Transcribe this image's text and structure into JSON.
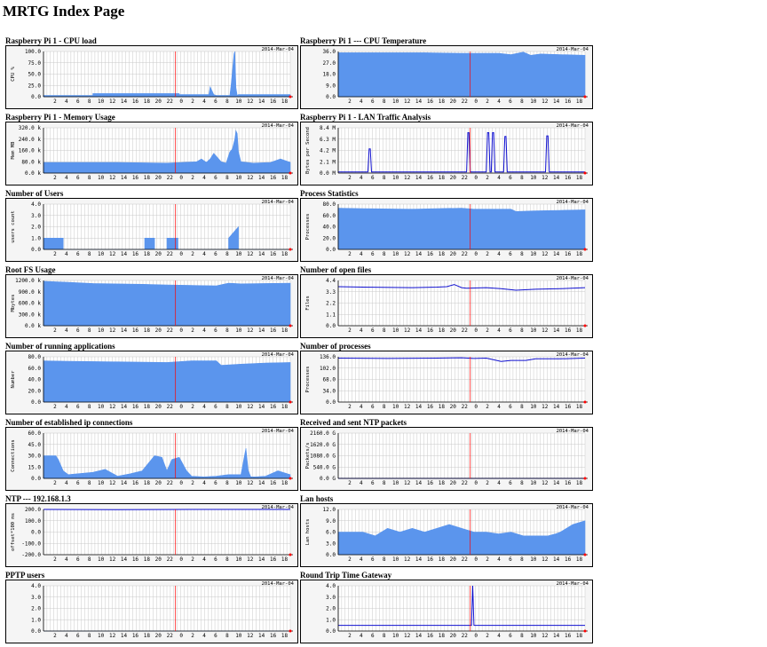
{
  "page": {
    "title": "MRTG Index Page"
  },
  "graph_defaults": {
    "date_stamp": "2014-Mar-04",
    "x_ticks": [
      "2",
      "4",
      "6",
      "8",
      "10",
      "12",
      "14",
      "16",
      "18",
      "20",
      "22",
      "0",
      "2",
      "4",
      "6",
      "8",
      "10",
      "12",
      "14",
      "16",
      "18"
    ],
    "colors": {
      "area": "#5b95ed",
      "line": "#1010d0",
      "grid": "#c8c8c8",
      "now_marker": "#ff0000",
      "plot_bg": "#f5f5f5"
    }
  },
  "graphs": [
    {
      "title": "Raspberry Pi 1 - CPU load",
      "ylabel": "CPU %",
      "yticks": [
        "0.0",
        "25.0",
        "50.0",
        "75.0",
        "100.0"
      ],
      "ymax": 100,
      "style": "area",
      "chart_data": {
        "type": "area",
        "x": [
          0,
          0.2,
          0.2,
          0.55,
          0.55,
          0.67,
          0.675,
          0.69,
          0.7,
          0.755,
          0.76,
          0.772,
          0.775,
          0.78,
          0.785,
          0.79,
          1
        ],
        "y": [
          3,
          3,
          7,
          7,
          5,
          5,
          22,
          5,
          3,
          3,
          25,
          95,
          100,
          20,
          3,
          5,
          5
        ],
        "ylim": [
          0,
          100
        ]
      }
    },
    {
      "title": "Raspberry Pi 1 --- CPU Temperature",
      "ylabel": "",
      "yticks": [
        "0.0",
        "9.0",
        "18.0",
        "27.0",
        "36.0"
      ],
      "ymax": 36,
      "style": "area",
      "chart_data": {
        "type": "area",
        "x": [
          0,
          0.35,
          0.5,
          0.65,
          0.7,
          0.75,
          0.78,
          0.82,
          0.9,
          1
        ],
        "y": [
          35,
          35,
          34.5,
          34.5,
          33.5,
          35.5,
          33,
          34,
          33.5,
          33
        ],
        "ylim": [
          0,
          36
        ]
      }
    },
    {
      "title": "Raspberry Pi 1 - Memory Usage",
      "ylabel": "Mem MB",
      "yticks": [
        "0.0 k",
        "80.0 k",
        "160.0 k",
        "240.0 k",
        "320.0 k"
      ],
      "ymax": 320,
      "style": "area",
      "chart_data": {
        "type": "area",
        "x": [
          0,
          0.3,
          0.5,
          0.62,
          0.64,
          0.66,
          0.675,
          0.69,
          0.72,
          0.74,
          0.755,
          0.765,
          0.775,
          0.78,
          0.785,
          0.79,
          0.8,
          0.85,
          0.92,
          0.96,
          1
        ],
        "y": [
          75,
          75,
          70,
          80,
          100,
          75,
          100,
          140,
          80,
          70,
          150,
          170,
          240,
          300,
          280,
          150,
          80,
          70,
          75,
          100,
          75
        ],
        "ylim": [
          0,
          320
        ]
      }
    },
    {
      "title": "Raspberry Pi 1 - LAN Traffic Analysis",
      "ylabel": "Bytes per Second",
      "yticks": [
        "0.0 M",
        "2.1 M",
        "4.2 M",
        "6.3 M",
        "8.4 M"
      ],
      "ymax": 8.4,
      "style": "line",
      "chart_data": {
        "type": "line",
        "x": [
          0,
          0.12,
          0.125,
          0.13,
          0.135,
          0.52,
          0.525,
          0.53,
          0.535,
          0.6,
          0.605,
          0.61,
          0.615,
          0.62,
          0.625,
          0.63,
          0.635,
          0.67,
          0.675,
          0.68,
          0.685,
          0.84,
          0.845,
          0.85,
          0.855,
          1
        ],
        "y": [
          0.2,
          0.2,
          4.5,
          4.5,
          0.2,
          0.2,
          7.5,
          7.5,
          0.2,
          0.2,
          7.5,
          7.5,
          0.2,
          0.2,
          7.5,
          7.5,
          0.2,
          0.2,
          6.8,
          6.8,
          0.2,
          0.2,
          6.9,
          6.9,
          0.2,
          0.2
        ],
        "ylim": [
          0,
          8.4
        ]
      }
    },
    {
      "title": "Number of Users",
      "ylabel": "users count",
      "yticks": [
        "0.0",
        "1.0",
        "2.0",
        "3.0",
        "4.0"
      ],
      "ymax": 4,
      "style": "area",
      "chart_data": {
        "type": "area",
        "x": [
          0,
          0.08,
          0.08,
          0.41,
          0.41,
          0.45,
          0.45,
          0.5,
          0.5,
          0.545,
          0.545,
          0.75,
          0.75,
          0.79,
          0.79,
          1
        ],
        "y": [
          1,
          1,
          0,
          0,
          1,
          1,
          0,
          0,
          1,
          1,
          0,
          0,
          1,
          2,
          0,
          0
        ],
        "ylim": [
          0,
          4
        ]
      }
    },
    {
      "title": "Process Statistics",
      "ylabel": "Processes",
      "yticks": [
        "0.0",
        "20.0",
        "40.0",
        "60.0",
        "80.0"
      ],
      "ymax": 80,
      "style": "area",
      "chart_data": {
        "type": "area",
        "x": [
          0,
          0.1,
          0.3,
          0.5,
          0.55,
          0.7,
          0.72,
          0.8,
          0.9,
          1
        ],
        "y": [
          73,
          72,
          71,
          73,
          71,
          71,
          67,
          68,
          69,
          70
        ],
        "ylim": [
          0,
          80
        ]
      }
    },
    {
      "title": "Root FS Usage",
      "ylabel": "Mbytes",
      "yticks": [
        "0.0 k",
        "300.0 k",
        "600.0 k",
        "900.0 k",
        "1200.0 k"
      ],
      "ymax": 1200,
      "style": "area",
      "chart_data": {
        "type": "area",
        "x": [
          0,
          0.1,
          0.2,
          0.4,
          0.5,
          0.6,
          0.7,
          0.75,
          0.8,
          1
        ],
        "y": [
          1180,
          1150,
          1120,
          1100,
          1080,
          1070,
          1060,
          1130,
          1110,
          1130
        ],
        "ylim": [
          0,
          1200
        ]
      }
    },
    {
      "title": "Number of open files",
      "ylabel": "Files",
      "yticks": [
        "0.0",
        "1.1",
        "2.2",
        "3.3",
        "4.4"
      ],
      "ymax": 4.4,
      "style": "line",
      "chart_data": {
        "type": "line",
        "x": [
          0,
          0.1,
          0.3,
          0.4,
          0.44,
          0.47,
          0.5,
          0.52,
          0.6,
          0.66,
          0.72,
          0.8,
          0.9,
          1
        ],
        "y": [
          3.8,
          3.75,
          3.7,
          3.75,
          3.8,
          4.0,
          3.7,
          3.65,
          3.7,
          3.6,
          3.45,
          3.55,
          3.6,
          3.7
        ],
        "ylim": [
          0,
          4.4
        ]
      }
    },
    {
      "title": "Number of running applications",
      "ylabel": "Number",
      "yticks": [
        "0.0",
        "20.0",
        "40.0",
        "60.0",
        "80.0"
      ],
      "ymax": 80,
      "style": "area",
      "chart_data": {
        "type": "area",
        "x": [
          0,
          0.1,
          0.3,
          0.5,
          0.54,
          0.6,
          0.7,
          0.72,
          0.8,
          0.9,
          1
        ],
        "y": [
          73,
          72,
          71,
          70,
          71,
          73,
          73,
          65,
          67,
          69,
          70
        ],
        "ylim": [
          0,
          80
        ]
      }
    },
    {
      "title": "Number of processes",
      "ylabel": "Processes",
      "yticks": [
        "0.0",
        "34.0",
        "68.0",
        "102.0",
        "136.0"
      ],
      "ymax": 136,
      "style": "line",
      "chart_data": {
        "type": "line",
        "x": [
          0,
          0.2,
          0.4,
          0.5,
          0.55,
          0.6,
          0.66,
          0.7,
          0.76,
          0.8,
          0.9,
          1
        ],
        "y": [
          132,
          131,
          132,
          133,
          131,
          132,
          122,
          125,
          125,
          130,
          130,
          132
        ],
        "ylim": [
          0,
          136
        ]
      }
    },
    {
      "title": "Number of established ip connections",
      "ylabel": "Connections",
      "yticks": [
        "0.0",
        "15.0",
        "30.0",
        "45.0",
        "60.0"
      ],
      "ymax": 60,
      "style": "area",
      "chart_data": {
        "type": "area",
        "x": [
          0,
          0.05,
          0.06,
          0.08,
          0.1,
          0.2,
          0.25,
          0.3,
          0.35,
          0.4,
          0.45,
          0.48,
          0.5,
          0.52,
          0.55,
          0.58,
          0.6,
          0.65,
          0.7,
          0.75,
          0.8,
          0.82,
          0.83,
          0.84,
          0.86,
          0.9,
          0.95,
          1
        ],
        "y": [
          30,
          30,
          25,
          10,
          5,
          8,
          12,
          3,
          6,
          10,
          30,
          28,
          10,
          25,
          28,
          10,
          3,
          2,
          3,
          5,
          5,
          40,
          10,
          2,
          2,
          3,
          10,
          5
        ],
        "ylim": [
          0,
          60
        ]
      }
    },
    {
      "title": "Received and sent NTP packets",
      "ylabel": "Packets/s",
      "yticks": [
        "0.0 G",
        "540.0 G",
        "1080.0 G",
        "1620.0 G",
        "2160.0 G"
      ],
      "ymax": 2160,
      "style": "line",
      "chart_data": {
        "type": "line",
        "x": [
          0,
          1
        ],
        "y": [
          0,
          0
        ],
        "ylim": [
          0,
          2160
        ]
      }
    },
    {
      "title": "NTP --- 192.168.1.3",
      "ylabel": "offset*100 ms",
      "yticks": [
        "-200.0",
        "-100.0",
        "0.0",
        "100.0",
        "200.0"
      ],
      "ymax": 400,
      "style": "line",
      "chart_data": {
        "type": "line",
        "x": [
          0,
          0.3,
          0.6,
          1
        ],
        "y": [
          200,
          198,
          200,
          200
        ],
        "ylim": [
          -200,
          200
        ]
      }
    },
    {
      "title": "Lan hosts",
      "ylabel": "Lan hosts",
      "yticks": [
        "0.0",
        "3.0",
        "6.0",
        "9.0",
        "12.0"
      ],
      "ymax": 12,
      "style": "area",
      "chart_data": {
        "type": "area",
        "x": [
          0,
          0.1,
          0.15,
          0.2,
          0.25,
          0.3,
          0.35,
          0.4,
          0.45,
          0.5,
          0.55,
          0.6,
          0.65,
          0.7,
          0.75,
          0.8,
          0.85,
          0.88,
          0.9,
          0.95,
          1
        ],
        "y": [
          6,
          6,
          5,
          7,
          6,
          7,
          6,
          7,
          8,
          7,
          6,
          6,
          5.5,
          6,
          5,
          5,
          5,
          5.5,
          6,
          8,
          9
        ],
        "ylim": [
          0,
          12
        ]
      }
    },
    {
      "title": "PPTP users",
      "ylabel": "",
      "yticks": [
        "0.0",
        "1.0",
        "2.0",
        "3.0",
        "4.0"
      ],
      "ymax": 4,
      "style": "area",
      "chart_data": {
        "type": "area",
        "x": [
          0,
          1
        ],
        "y": [
          0,
          0
        ],
        "ylim": [
          0,
          4
        ]
      }
    },
    {
      "title": "Round Trip Time Gateway",
      "ylabel": "",
      "yticks": [
        "0.0",
        "1.0",
        "2.0",
        "3.0",
        "4.0"
      ],
      "ymax": 4,
      "style": "line",
      "chart_data": {
        "type": "line",
        "x": [
          0,
          0.54,
          0.545,
          0.55,
          1
        ],
        "y": [
          0.5,
          0.5,
          4,
          0.5,
          0.5
        ],
        "ylim": [
          0,
          4
        ]
      }
    }
  ]
}
